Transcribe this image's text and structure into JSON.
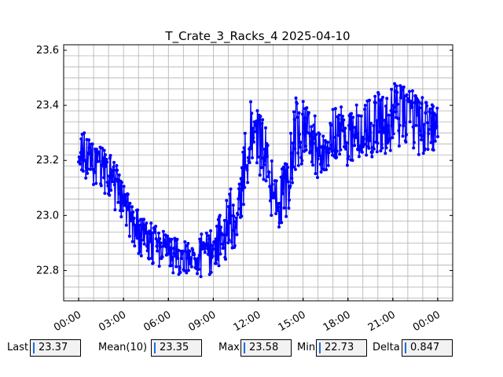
{
  "chart_data": {
    "type": "line",
    "title": "T_Crate_3_Racks_4 2025-04-10",
    "xlabel": "",
    "ylabel": "",
    "x_unit": "hours",
    "xlim": [
      -1.0,
      25.0
    ],
    "ylim": [
      22.69,
      23.62
    ],
    "x_ticks": [
      0,
      3,
      6,
      9,
      12,
      15,
      18,
      21,
      24
    ],
    "x_tick_labels": [
      "00:00",
      "03:00",
      "06:00",
      "09:00",
      "12:00",
      "15:00",
      "18:00",
      "21:00",
      "00:00"
    ],
    "y_ticks": [
      22.8,
      23.0,
      23.2,
      23.4,
      23.6
    ],
    "y_tick_labels": [
      "22.8",
      "23.0",
      "23.2",
      "23.4",
      "23.6"
    ],
    "grid": true,
    "series": [
      {
        "color": "#0000ff",
        "marker": "circle",
        "trend": {
          "x": [
            0,
            0.5,
            1,
            1.5,
            2,
            2.5,
            3,
            3.5,
            4,
            4.5,
            5,
            5.5,
            6,
            6.5,
            7,
            7.5,
            8,
            8.5,
            9,
            9.5,
            10,
            10.5,
            11,
            11.5,
            12,
            12.5,
            13,
            13.5,
            14,
            14.5,
            15,
            15.5,
            16,
            16.5,
            17,
            17.5,
            18,
            18.5,
            19,
            19.5,
            20,
            20.5,
            21,
            21.5,
            22,
            22.5,
            23,
            23.5,
            24
          ],
          "y": [
            23.22,
            23.2,
            23.18,
            23.17,
            23.15,
            23.1,
            23.03,
            22.98,
            22.94,
            22.91,
            22.9,
            22.88,
            22.86,
            22.85,
            22.85,
            22.84,
            22.85,
            22.86,
            22.88,
            22.92,
            22.96,
            23.02,
            23.15,
            23.3,
            23.28,
            23.2,
            23.08,
            23.05,
            23.12,
            23.3,
            23.3,
            23.27,
            23.24,
            23.26,
            23.28,
            23.3,
            23.29,
            23.3,
            23.31,
            23.32,
            23.33,
            23.34,
            23.36,
            23.37,
            23.35,
            23.34,
            23.33,
            23.32,
            23.32
          ]
        },
        "noise_amplitude": [
          0.09,
          0.1,
          0.08,
          0.08,
          0.08,
          0.09,
          0.08,
          0.08,
          0.08,
          0.08,
          0.08,
          0.08,
          0.07,
          0.07,
          0.07,
          0.07,
          0.08,
          0.08,
          0.09,
          0.1,
          0.12,
          0.13,
          0.13,
          0.12,
          0.12,
          0.12,
          0.12,
          0.12,
          0.12,
          0.13,
          0.13,
          0.12,
          0.11,
          0.11,
          0.11,
          0.11,
          0.11,
          0.11,
          0.11,
          0.11,
          0.12,
          0.12,
          0.12,
          0.12,
          0.12,
          0.12,
          0.11,
          0.1,
          0.1
        ],
        "samples": 700
      }
    ]
  },
  "stats": {
    "last_label": "Last",
    "last_value": "23.37",
    "mean_label": "Mean(10)",
    "mean_value": "23.35",
    "max_label": "Max",
    "max_value": "23.58",
    "min_label": "Min",
    "min_value": "22.73",
    "delta_label": "Delta",
    "delta_value": "0.847"
  }
}
